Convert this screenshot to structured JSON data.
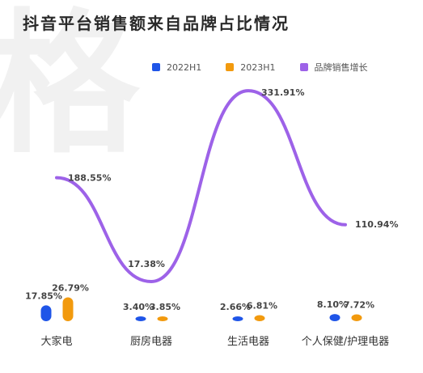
{
  "page": {
    "title": "抖音平台销售额来自品牌占比情况",
    "watermark": "格"
  },
  "chart_data": {
    "type": "bar",
    "title": "抖音平台销售额来自品牌占比情况",
    "categories": [
      "大家电",
      "厨房电器",
      "生活电器",
      "个人保健/护理电器"
    ],
    "series": [
      {
        "name": "2022H1",
        "type": "bar",
        "color": "#1f55e8",
        "values": [
          17.85,
          3.4,
          2.66,
          8.1
        ],
        "labels": [
          "17.85%",
          "3.40%",
          "2.66%",
          "8.10%"
        ]
      },
      {
        "name": "2023H1",
        "type": "bar",
        "color": "#f29a0e",
        "values": [
          26.79,
          3.85,
          6.81,
          7.72
        ],
        "labels": [
          "26.79%",
          "3.85%",
          "6.81%",
          "7.72%"
        ]
      },
      {
        "name": "品牌销售增长",
        "type": "line",
        "color": "#9d62e8",
        "values": [
          188.55,
          17.38,
          331.91,
          110.94
        ],
        "labels": [
          "188.55%",
          "17.38%",
          "331.91%",
          "110.94%"
        ]
      }
    ],
    "legend_position": "top",
    "grid": false
  }
}
